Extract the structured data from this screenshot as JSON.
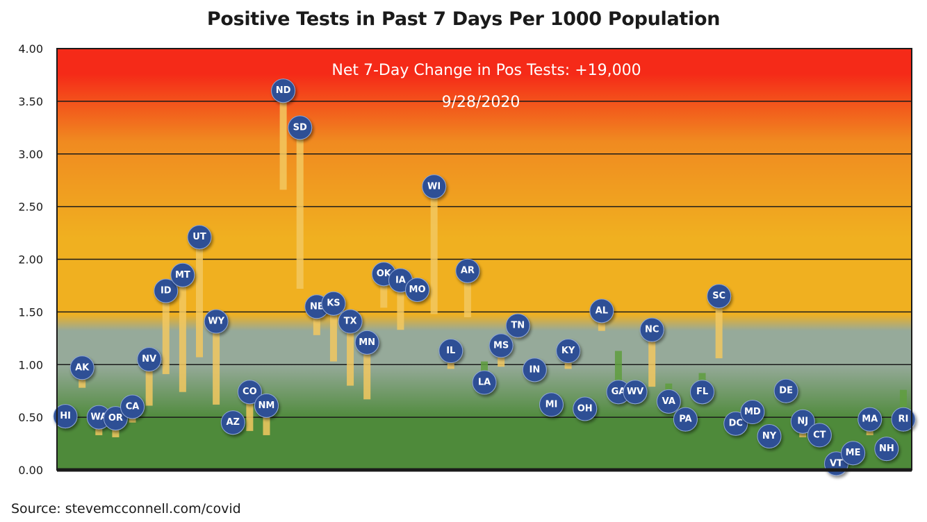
{
  "title": "Positive Tests in Past 7 Days Per 1000 Population",
  "source": "Source: stevemcconnell.com/covid",
  "chart_data": {
    "type": "scatter",
    "title": "Positive Tests in Past 7 Days Per 1000 Population",
    "ylim": [
      0,
      4
    ],
    "ytick_labels": [
      "0.00",
      "0.50",
      "1.00",
      "1.50",
      "2.00",
      "2.50",
      "3.00",
      "3.50",
      "4.00"
    ],
    "grid": true,
    "annotation_line1": "Net 7-Day Change in Pos Tests: +19,000",
    "annotation_line2": "9/28/2020",
    "background_gradient": [
      "#4e8a3a",
      "#96aa9a",
      "#f0b020",
      "#f08a20",
      "#f52a18"
    ],
    "marker_color": "#2f4f95",
    "increase_color": "#f2c860",
    "decrease_color": "#5f9e3e",
    "points": [
      {
        "state": "HI",
        "value": 0.51,
        "prev": 0.52
      },
      {
        "state": "AK",
        "value": 0.97,
        "prev": 0.78
      },
      {
        "state": "WA",
        "value": 0.5,
        "prev": 0.33
      },
      {
        "state": "OR",
        "value": 0.49,
        "prev": 0.31
      },
      {
        "state": "CA",
        "value": 0.6,
        "prev": 0.45
      },
      {
        "state": "NV",
        "value": 1.05,
        "prev": 0.61
      },
      {
        "state": "ID",
        "value": 1.7,
        "prev": 0.91
      },
      {
        "state": "MT",
        "value": 1.85,
        "prev": 0.74
      },
      {
        "state": "UT",
        "value": 2.21,
        "prev": 1.07
      },
      {
        "state": "WY",
        "value": 1.41,
        "prev": 0.62
      },
      {
        "state": "AZ",
        "value": 0.45,
        "prev": 0.47
      },
      {
        "state": "CO",
        "value": 0.74,
        "prev": 0.37
      },
      {
        "state": "NM",
        "value": 0.61,
        "prev": 0.33
      },
      {
        "state": "ND",
        "value": 3.6,
        "prev": 2.66
      },
      {
        "state": "SD",
        "value": 3.25,
        "prev": 1.72
      },
      {
        "state": "NE",
        "value": 1.55,
        "prev": 1.28
      },
      {
        "state": "KS",
        "value": 1.58,
        "prev": 1.03
      },
      {
        "state": "TX",
        "value": 1.41,
        "prev": 0.8
      },
      {
        "state": "MN",
        "value": 1.21,
        "prev": 0.67
      },
      {
        "state": "OK",
        "value": 1.86,
        "prev": 1.54
      },
      {
        "state": "IA",
        "value": 1.8,
        "prev": 1.33
      },
      {
        "state": "MO",
        "value": 1.71,
        "prev": 1.72
      },
      {
        "state": "WI",
        "value": 2.69,
        "prev": 1.48
      },
      {
        "state": "IL",
        "value": 1.13,
        "prev": 0.96
      },
      {
        "state": "AR",
        "value": 1.89,
        "prev": 1.45
      },
      {
        "state": "LA",
        "value": 0.83,
        "prev": 1.03
      },
      {
        "state": "MS",
        "value": 1.18,
        "prev": 0.98
      },
      {
        "state": "TN",
        "value": 1.37,
        "prev": 1.25
      },
      {
        "state": "IN",
        "value": 0.95,
        "prev": 0.96
      },
      {
        "state": "MI",
        "value": 0.62,
        "prev": 0.64
      },
      {
        "state": "KY",
        "value": 1.13,
        "prev": 0.96
      },
      {
        "state": "OH",
        "value": 0.58,
        "prev": 0.6
      },
      {
        "state": "AL",
        "value": 1.51,
        "prev": 1.32
      },
      {
        "state": "GA",
        "value": 0.74,
        "prev": 1.13
      },
      {
        "state": "WV",
        "value": 0.74,
        "prev": 0.78
      },
      {
        "state": "NC",
        "value": 1.33,
        "prev": 0.79
      },
      {
        "state": "VA",
        "value": 0.65,
        "prev": 0.82
      },
      {
        "state": "PA",
        "value": 0.48,
        "prev": 0.5
      },
      {
        "state": "FL",
        "value": 0.74,
        "prev": 0.92
      },
      {
        "state": "SC",
        "value": 1.65,
        "prev": 1.06
      },
      {
        "state": "DC",
        "value": 0.44,
        "prev": 0.46
      },
      {
        "state": "MD",
        "value": 0.55,
        "prev": 0.56
      },
      {
        "state": "NY",
        "value": 0.32,
        "prev": 0.34
      },
      {
        "state": "DE",
        "value": 0.75,
        "prev": 0.77
      },
      {
        "state": "NJ",
        "value": 0.46,
        "prev": 0.31
      },
      {
        "state": "CT",
        "value": 0.33,
        "prev": 0.35
      },
      {
        "state": "VT",
        "value": 0.06,
        "prev": 0.07
      },
      {
        "state": "ME",
        "value": 0.16,
        "prev": 0.17
      },
      {
        "state": "MA",
        "value": 0.48,
        "prev": 0.33
      },
      {
        "state": "NH",
        "value": 0.2,
        "prev": 0.21
      },
      {
        "state": "RI",
        "value": 0.48,
        "prev": 0.76
      }
    ]
  }
}
